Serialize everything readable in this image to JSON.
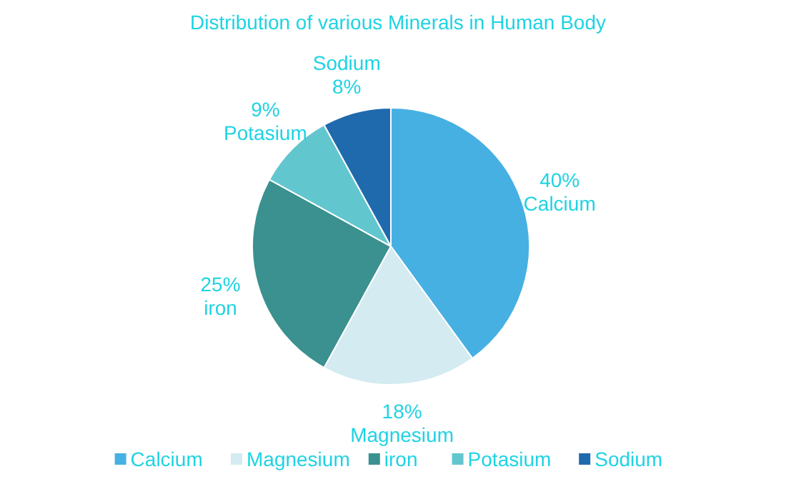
{
  "chart_data": {
    "type": "pie",
    "title": "Distribution of various Minerals in Human Body",
    "categories": [
      "Calcium",
      "Magnesium",
      "iron",
      "Potasium",
      "Sodium"
    ],
    "values": [
      40,
      18,
      25,
      9,
      8
    ],
    "colors": [
      "#46b0e3",
      "#d3ebf1",
      "#3a918f",
      "#62c6cf",
      "#1f6aad"
    ],
    "value_labels": [
      "40%",
      "18%",
      "25%",
      "9%",
      "8%"
    ],
    "legend": "bottom"
  }
}
